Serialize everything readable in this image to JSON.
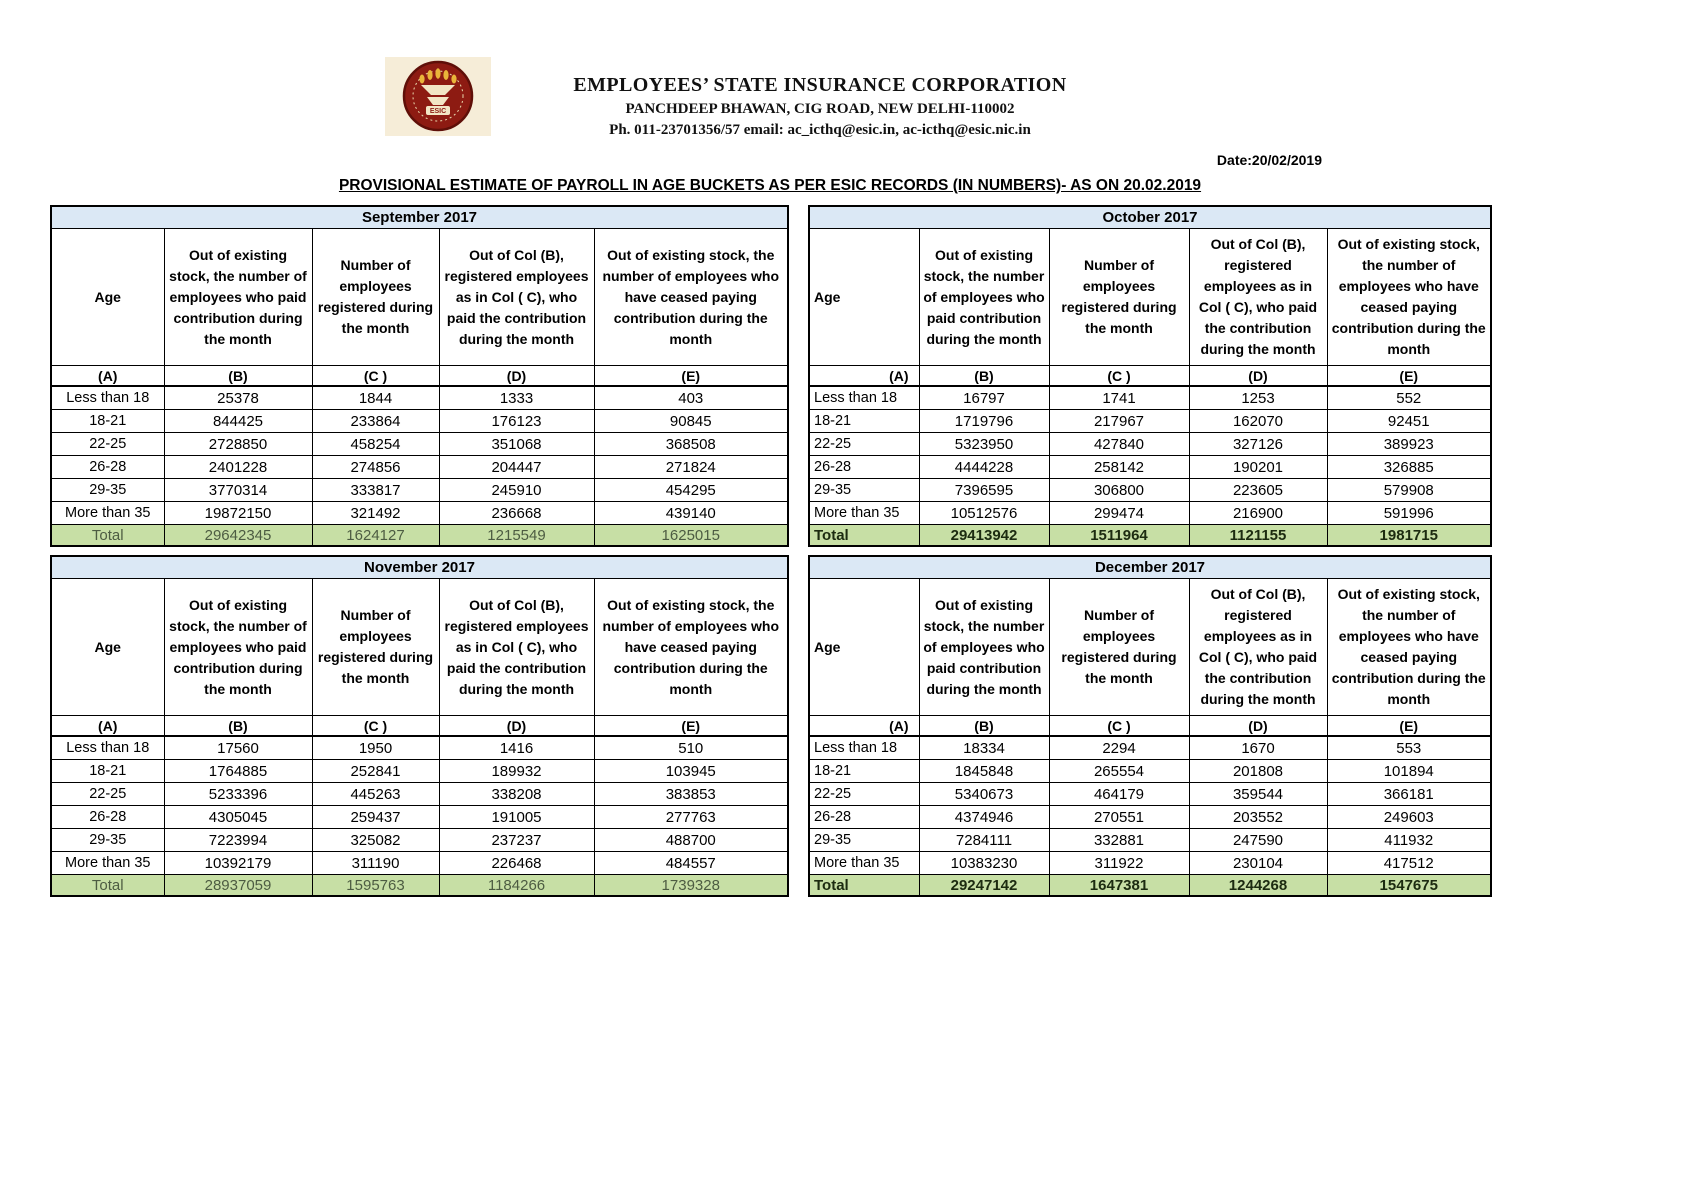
{
  "page": {
    "date_label": "Date:20/02/2019",
    "title": "PROVISIONAL ESTIMATE OF PAYROLL IN AGE BUCKETS AS PER ESIC RECORDS (IN NUMBERS)- AS ON 20.02.2019"
  },
  "letterhead": {
    "org_name": "EMPLOYEES’ STATE INSURANCE CORPORATION",
    "address": "PANCHDEEP BHAWAN, CIG ROAD, NEW DELHI-110002",
    "contact": "Ph. 011-23701356/57 email: ac_icthq@esic.in, ac-icthq@esic.nic.in",
    "logo_text": "ESIC"
  },
  "colors": {
    "month_header_bg": "#dbe8f5",
    "total_row_bg": "#c7dfa5",
    "emblem_maroon": "#8d1b12"
  },
  "table_template": {
    "columns": [
      "Age",
      "Out of existing stock, the number of employees who paid contribution during the month",
      "Number of employees registered during the month",
      "Out of Col (B), registered employees as in Col ( C), who paid the contribution during the month",
      "Out of existing stock, the number of  employees  who have ceased paying contribution during the month"
    ],
    "column_letters": [
      "(A)",
      "(B)",
      "(C )",
      "(D)",
      "(E)"
    ],
    "total_label": "Total"
  },
  "tables": [
    {
      "month": "September 2017",
      "rows": [
        [
          "Less than 18",
          25378,
          1844,
          1333,
          403
        ],
        [
          "18-21",
          844425,
          233864,
          176123,
          90845
        ],
        [
          "22-25",
          2728850,
          458254,
          351068,
          368508
        ],
        [
          "26-28",
          2401228,
          274856,
          204447,
          271824
        ],
        [
          "29-35",
          3770314,
          333817,
          245910,
          454295
        ],
        [
          "More than 35",
          19872150,
          321492,
          236668,
          439140
        ]
      ],
      "total": [
        29642345,
        1624127,
        1215549,
        1625015
      ]
    },
    {
      "month": "October 2017",
      "rows": [
        [
          "Less than 18",
          16797,
          1741,
          1253,
          552
        ],
        [
          "18-21",
          1719796,
          217967,
          162070,
          92451
        ],
        [
          "22-25",
          5323950,
          427840,
          327126,
          389923
        ],
        [
          "26-28",
          4444228,
          258142,
          190201,
          326885
        ],
        [
          "29-35",
          7396595,
          306800,
          223605,
          579908
        ],
        [
          "More than 35",
          10512576,
          299474,
          216900,
          591996
        ]
      ],
      "total": [
        29413942,
        1511964,
        1121155,
        1981715
      ]
    },
    {
      "month": "November 2017",
      "rows": [
        [
          "Less than 18",
          17560,
          1950,
          1416,
          510
        ],
        [
          "18-21",
          1764885,
          252841,
          189932,
          103945
        ],
        [
          "22-25",
          5233396,
          445263,
          338208,
          383853
        ],
        [
          "26-28",
          4305045,
          259437,
          191005,
          277763
        ],
        [
          "29-35",
          7223994,
          325082,
          237237,
          488700
        ],
        [
          "More than 35",
          10392179,
          311190,
          226468,
          484557
        ]
      ],
      "total": [
        28937059,
        1595763,
        1184266,
        1739328
      ]
    },
    {
      "month": "December 2017",
      "rows": [
        [
          "Less than 18",
          18334,
          2294,
          1670,
          553
        ],
        [
          "18-21",
          1845848,
          265554,
          201808,
          101894
        ],
        [
          "22-25",
          5340673,
          464179,
          359544,
          366181
        ],
        [
          "26-28",
          4374946,
          270551,
          203552,
          249603
        ],
        [
          "29-35",
          7284111,
          332881,
          247590,
          411932
        ],
        [
          "More than 35",
          10383230,
          311922,
          230104,
          417512
        ]
      ],
      "total": [
        29247142,
        1647381,
        1244268,
        1547675
      ]
    }
  ]
}
